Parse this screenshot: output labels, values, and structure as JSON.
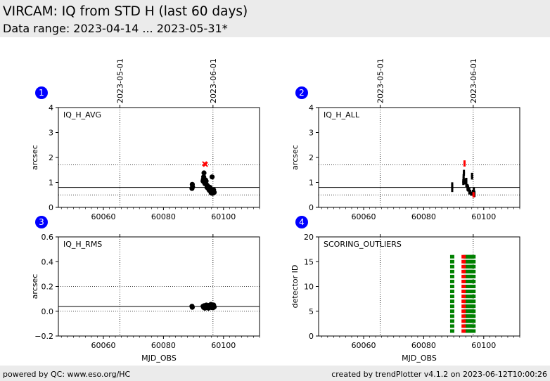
{
  "header": {
    "title": "VIRCAM: IQ from STD H (last 60 days)",
    "subtitle": "Data range: 2023-04-14 ... 2023-05-31*"
  },
  "footer": {
    "left": "powered by QC: www.eso.org/HC",
    "right": "created by trendPlotter v4.1.2 on 2023-06-12T10:00:26"
  },
  "colors": {
    "header_bg": "#ebebeb",
    "badge": "#0000ff",
    "points": "#000000",
    "outlier": "#ff0000",
    "good": "#008000"
  },
  "chart_data": [
    {
      "type": "scatter",
      "badge": "1",
      "panel_label": "IQ_H_AVG",
      "ylabel": "arcsec",
      "xlabel": "",
      "xlim": [
        60045,
        60112
      ],
      "ylim": [
        0,
        4
      ],
      "xticks": [
        60060,
        60080,
        60100
      ],
      "yticks": [
        0,
        1,
        2,
        3,
        4
      ],
      "top_date_ticks": [
        {
          "x": 60065.5,
          "label": "2023-05-01"
        },
        {
          "x": 60096.5,
          "label": "2023-06-01"
        }
      ],
      "hlines": [
        {
          "y": 0.8,
          "style": "solid"
        },
        {
          "y": 1.7,
          "style": "dotted"
        },
        {
          "y": 0.5,
          "style": "dotted"
        }
      ],
      "points": [
        [
          60089.5,
          0.76
        ],
        [
          60089.6,
          0.92
        ],
        [
          60089.7,
          0.82
        ],
        [
          60093.2,
          1.05
        ],
        [
          60093.3,
          1.12
        ],
        [
          60093.4,
          1.22
        ],
        [
          60093.5,
          1.38
        ],
        [
          60093.6,
          1.0
        ],
        [
          60093.8,
          0.95
        ],
        [
          60094.0,
          1.1
        ],
        [
          60094.2,
          1.05
        ],
        [
          60094.4,
          0.9
        ],
        [
          60094.5,
          0.8
        ],
        [
          60094.7,
          0.86
        ],
        [
          60094.9,
          0.82
        ],
        [
          60095.1,
          0.72
        ],
        [
          60095.3,
          0.68
        ],
        [
          60095.5,
          0.8
        ],
        [
          60095.7,
          0.64
        ],
        [
          60095.9,
          0.58
        ],
        [
          60096.1,
          0.62
        ],
        [
          60096.3,
          0.56
        ],
        [
          60096.5,
          0.6
        ],
        [
          60096.7,
          0.7
        ],
        [
          60096.9,
          0.6
        ],
        [
          60096.2,
          1.22
        ]
      ],
      "outliers": [
        [
          60093.7,
          1.75
        ],
        [
          60094.0,
          1.72
        ]
      ]
    },
    {
      "type": "scatter",
      "badge": "2",
      "panel_label": "IQ_H_ALL",
      "ylabel": "arcsec",
      "xlabel": "",
      "xlim": [
        60045,
        60112
      ],
      "ylim": [
        0,
        4
      ],
      "xticks": [
        60060,
        60080,
        60100
      ],
      "yticks": [
        0,
        1,
        2,
        3,
        4
      ],
      "top_date_ticks": [
        {
          "x": 60065.5,
          "label": "2023-05-01"
        },
        {
          "x": 60096.5,
          "label": "2023-06-01"
        }
      ],
      "hlines": [
        {
          "y": 0.8,
          "style": "solid"
        },
        {
          "y": 1.7,
          "style": "dotted"
        },
        {
          "y": 0.5,
          "style": "dotted"
        }
      ],
      "points": [
        [
          60089.5,
          0.7
        ],
        [
          60089.5,
          0.78
        ],
        [
          60089.5,
          0.86
        ],
        [
          60089.5,
          0.92
        ],
        [
          60093.2,
          0.98
        ],
        [
          60093.2,
          1.05
        ],
        [
          60093.3,
          1.15
        ],
        [
          60093.3,
          1.25
        ],
        [
          60093.4,
          1.35
        ],
        [
          60093.4,
          1.42
        ],
        [
          60093.6,
          1.0
        ],
        [
          60093.6,
          1.08
        ],
        [
          60094.2,
          0.9
        ],
        [
          60094.2,
          1.0
        ],
        [
          60094.2,
          1.1
        ],
        [
          60094.6,
          0.75
        ],
        [
          60094.6,
          0.85
        ],
        [
          60094.8,
          0.72
        ],
        [
          60094.8,
          0.8
        ],
        [
          60095.2,
          0.6
        ],
        [
          60095.2,
          0.7
        ],
        [
          60095.5,
          0.62
        ],
        [
          60095.8,
          0.55
        ],
        [
          60096.1,
          1.2
        ],
        [
          60096.1,
          1.3
        ],
        [
          60096.4,
          0.55
        ],
        [
          60096.4,
          0.62
        ],
        [
          60096.7,
          0.6
        ],
        [
          60096.7,
          0.72
        ],
        [
          60096.9,
          0.5
        ],
        [
          60096.9,
          0.58
        ]
      ],
      "outliers": [
        [
          60093.6,
          1.72
        ],
        [
          60093.6,
          1.8
        ],
        [
          60096.6,
          0.48
        ],
        [
          60096.6,
          0.53
        ]
      ]
    },
    {
      "type": "scatter",
      "badge": "3",
      "panel_label": "IQ_H_RMS",
      "ylabel": "arcsec",
      "xlabel": "MJD_OBS",
      "xlim": [
        60045,
        60112
      ],
      "ylim": [
        -0.2,
        0.6
      ],
      "xticks": [
        60060,
        60080,
        60100
      ],
      "yticks": [
        -0.2,
        0.0,
        0.2,
        0.4,
        0.6
      ],
      "top_date_ticks": [
        {
          "x": 60065.5,
          "label": ""
        },
        {
          "x": 60096.5,
          "label": ""
        }
      ],
      "hlines": [
        {
          "y": 0.038,
          "style": "solid"
        },
        {
          "y": 0.2,
          "style": "dotted"
        },
        {
          "y": 0.0,
          "style": "dotted"
        }
      ],
      "points": [
        [
          60089.5,
          0.04
        ],
        [
          60089.6,
          0.032
        ],
        [
          60093.2,
          0.04
        ],
        [
          60093.4,
          0.03
        ],
        [
          60093.6,
          0.045
        ],
        [
          60093.8,
          0.025
        ],
        [
          60094.0,
          0.038
        ],
        [
          60094.3,
          0.05
        ],
        [
          60094.5,
          0.03
        ],
        [
          60094.8,
          0.04
        ],
        [
          60095.0,
          0.025
        ],
        [
          60095.3,
          0.048
        ],
        [
          60095.5,
          0.035
        ],
        [
          60095.8,
          0.055
        ],
        [
          60096.0,
          0.03
        ],
        [
          60096.3,
          0.042
        ],
        [
          60096.5,
          0.028
        ],
        [
          60096.7,
          0.05
        ],
        [
          60096.9,
          0.035
        ]
      ],
      "outliers": []
    },
    {
      "type": "scatter",
      "badge": "4",
      "panel_label": "SCORING_OUTLIERS",
      "ylabel": "detector ID",
      "xlabel": "MJD_OBS",
      "xlim": [
        60045,
        60112
      ],
      "ylim": [
        0,
        20
      ],
      "xticks": [
        60060,
        60080,
        60100
      ],
      "yticks": [
        0,
        5,
        10,
        15,
        20
      ],
      "top_date_ticks": [
        {
          "x": 60065.5,
          "label": ""
        },
        {
          "x": 60096.5,
          "label": ""
        }
      ],
      "hlines": [],
      "detectors": [
        1,
        16
      ],
      "green_columns": [
        60089.5,
        60093.8,
        60094.2,
        60094.6,
        60095.0,
        60095.4,
        60095.8,
        60096.2,
        60096.6
      ],
      "red_columns": [
        60093.3
      ]
    }
  ]
}
